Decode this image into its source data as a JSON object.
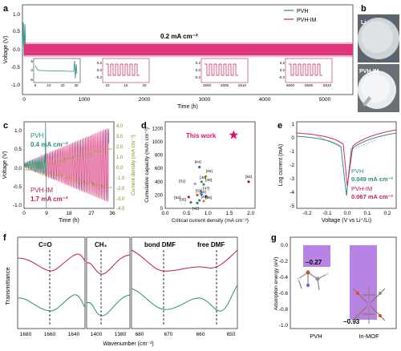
{
  "panels": {
    "a": {
      "letter": "a",
      "ylabel": "Voltage (V)",
      "xlabel": "Time (h)",
      "yticks": [
        "1.0",
        "0.5",
        "0.0",
        "-0.5",
        "-1.0"
      ],
      "xticks": [
        "0",
        "1000",
        "2000",
        "3000",
        "4000",
        "5000"
      ],
      "legend": [
        "PVH",
        "PVH-IM"
      ],
      "annotation": "0.2 mA cm⁻²",
      "insets": [
        {
          "yticks": [
            "5",
            "0",
            "-5"
          ],
          "xticks": [
            "0",
            "10",
            "20",
            "30"
          ]
        },
        {
          "yticks": [
            "0.2",
            "0.0",
            "-0.2"
          ],
          "xticks": [
            "10",
            "15",
            "20"
          ]
        },
        {
          "yticks": [
            "0.2",
            "0.0",
            "-0.2"
          ],
          "xticks": [
            "2500",
            "2505",
            "2510"
          ]
        },
        {
          "yticks": [
            "0.2",
            "0.0",
            "-0.2"
          ],
          "xticks": [
            "5500",
            "5505",
            "5510"
          ]
        }
      ]
    },
    "b": {
      "letter": "b",
      "label_top": "Li",
      "label_bottom": "PVH-IM"
    },
    "c": {
      "letter": "c",
      "ylabel": "Voltage (V)",
      "ylabel_right": "Current density (mA cm⁻²)",
      "xlabel": "Time (h)",
      "yticks": [
        "1.0",
        "0.5",
        "0.0",
        "-0.5",
        "-1.0"
      ],
      "yticks_right": [
        "4.0",
        "3.0",
        "2.0",
        "1.0",
        "0.0",
        "-1.0",
        "-2.0",
        "-3.0",
        "-4.0"
      ],
      "xticks": [
        "0",
        "9",
        "18",
        "27",
        "36"
      ],
      "pvh_label": "PVH",
      "pvh_value": "0.4 mA cm⁻²",
      "im_label": "PVH-IM",
      "im_value": "1.7 mA cm⁻²"
    },
    "d": {
      "letter": "d",
      "ylabel": "Cumulative capacity (mAh cm⁻²)",
      "xlabel": "Critical current density (mA cm⁻²)",
      "yticks": [
        "1200",
        "1000",
        "800",
        "600",
        "400",
        "200",
        "0"
      ],
      "xticks": [
        "0.0",
        "0.5",
        "1.0",
        "1.5",
        "2.0"
      ],
      "this_work": "This work",
      "refs": [
        "[44]",
        "[45]",
        "[48]",
        "[49]",
        "[51]",
        "[52]",
        "[53]",
        "[47]",
        "[50]",
        "[43]",
        "[46]",
        "[35]",
        "[42]",
        "[54]"
      ]
    },
    "e": {
      "letter": "e",
      "ylabel": "Log current (mA)",
      "xlabel": "Voltage (V vs Li⁺/Li)",
      "yticks": [
        "1",
        "0",
        "-1",
        "-2",
        "-3",
        "-4",
        "-5"
      ],
      "xticks": [
        "-0.2",
        "-0.1",
        "0.0",
        "0.1",
        "0.2"
      ],
      "pvh_label": "PVH",
      "pvh_value": "0.049 mA cm⁻²",
      "im_label": "PVH-IM",
      "im_value": "0.067 mA cm⁻²"
    },
    "f": {
      "letter": "f",
      "ylabel": "Transmittance",
      "xlabel": "Wavenumber (cm⁻¹)",
      "labels": [
        "C=O",
        "CH₃",
        "bond DMF",
        "free DMF"
      ],
      "xticks1": [
        "1680",
        "1660",
        "1640"
      ],
      "xticks2": [
        "1400",
        "1380"
      ],
      "xticks3": [
        "680",
        "670",
        "660",
        "650"
      ]
    },
    "g": {
      "letter": "g",
      "ylabel": "Adsorption energy (eV)",
      "yticks": [
        "0.0",
        "-0.2",
        "-0.4",
        "-0.6",
        "-0.8",
        "-1.0"
      ],
      "categories": [
        "PVH",
        "In-MOF"
      ],
      "value_labels": [
        "−0.27",
        "−0.93"
      ]
    }
  },
  "chart_data": [
    {
      "panel": "a",
      "type": "line",
      "series": [
        {
          "name": "PVH"
        },
        {
          "name": "PVH-IM"
        }
      ],
      "xlim": [
        0,
        5500
      ],
      "ylim": [
        -1.0,
        1.0
      ]
    },
    {
      "panel": "c",
      "type": "line",
      "series": [
        {
          "name": "PVH"
        },
        {
          "name": "PVH-IM"
        }
      ],
      "xlim": [
        0,
        36
      ],
      "ylim": [
        -1.0,
        1.0
      ]
    },
    {
      "panel": "d",
      "type": "scatter",
      "x": [
        1.6,
        0.8,
        0.95,
        0.85,
        0.9,
        0.7,
        0.55,
        0.75,
        0.85,
        0.95,
        0.8,
        0.9,
        0.6,
        0.75,
        1.95
      ],
      "y": [
        1100,
        620,
        480,
        400,
        360,
        370,
        170,
        200,
        210,
        180,
        120,
        110,
        90,
        80,
        400
      ],
      "xlim": [
        0,
        2.1
      ],
      "ylim": [
        0,
        1300
      ]
    },
    {
      "panel": "e",
      "type": "line",
      "series": [
        {
          "name": "PVH"
        },
        {
          "name": "PVH-IM"
        }
      ],
      "xlim": [
        -0.25,
        0.25
      ],
      "ylim": [
        -5.5,
        1
      ]
    },
    {
      "panel": "g",
      "type": "bar",
      "categories": [
        "PVH",
        "In-MOF"
      ],
      "values": [
        -0.27,
        -0.93
      ],
      "ylim": [
        -1.0,
        0.0
      ]
    }
  ]
}
